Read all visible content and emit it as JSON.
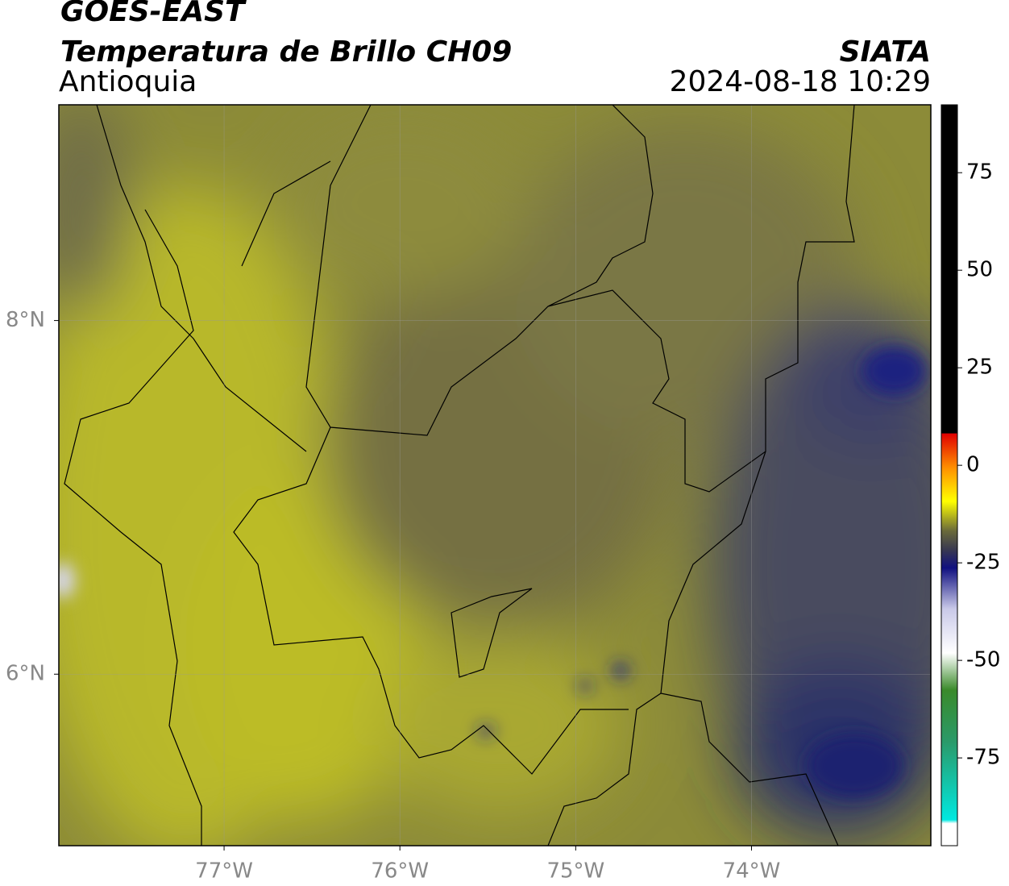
{
  "header": {
    "title": "GOES-EAST",
    "subtitle": "Temperatura de Brillo CH09",
    "region": "Antioquia",
    "source": "SIATA",
    "datetime": "2024-08-18 10:29"
  },
  "map": {
    "xlim": [
      -77.94,
      -72.98
    ],
    "ylim": [
      5.03,
      9.22
    ],
    "xticks": [
      {
        "value": -77,
        "label": "77°W"
      },
      {
        "value": -76,
        "label": "76°W"
      },
      {
        "value": -75,
        "label": "75°W"
      },
      {
        "value": -74,
        "label": "74°W"
      }
    ],
    "yticks": [
      {
        "value": 8,
        "label": "8°N"
      },
      {
        "value": 6,
        "label": "6°N"
      }
    ],
    "grid": true
  },
  "colorbar": {
    "lim": [
      -97.5,
      92.4
    ],
    "ticks": [
      75,
      50,
      25,
      0,
      -25,
      -50,
      -75
    ]
  }
}
